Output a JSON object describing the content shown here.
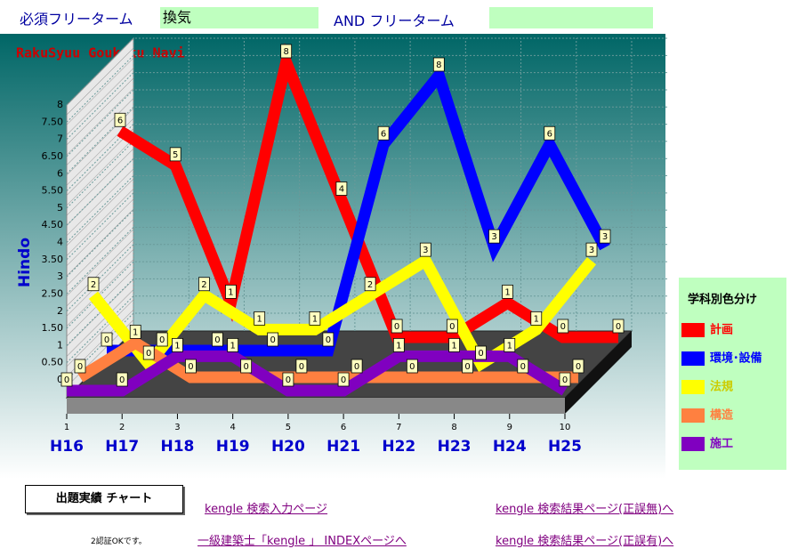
{
  "header": {
    "label1": "必須フリーターム",
    "input1": "換気",
    "label2": "AND フリーターム",
    "input2": ""
  },
  "chart_data": {
    "type": "ribbon3d",
    "title": "RakuSyuu Goukaku Navi",
    "y_label": "Hindo",
    "legend_title": "学科別色分け",
    "categories": [
      "H16",
      "H17",
      "H18",
      "H19",
      "H20",
      "H21",
      "H22",
      "H23",
      "H24",
      "H25"
    ],
    "x": [
      1,
      2,
      3,
      4,
      5,
      6,
      7,
      8,
      9,
      10
    ],
    "xticks": [
      1,
      2,
      3,
      4,
      5,
      6,
      7,
      8,
      9,
      10
    ],
    "ylim": [
      0,
      8
    ],
    "yticks": [
      0,
      {
        "value": 0.5,
        "label": "0.50"
      },
      1,
      {
        "value": 1.5,
        "label": "1.50"
      },
      2,
      {
        "value": 2.5,
        "label": "2.50"
      },
      3,
      {
        "value": 3.5,
        "label": "3.50"
      },
      4,
      {
        "value": 4.5,
        "label": "4.50"
      },
      5,
      {
        "value": 5.5,
        "label": "5.50"
      },
      6,
      {
        "value": 6.5,
        "label": "6.50"
      },
      7,
      {
        "value": 7.5,
        "label": "7.50"
      },
      8
    ],
    "grid": true,
    "series": [
      {
        "name": "計画",
        "color": "#ff0000",
        "values": [
          6,
          5,
          1,
          8,
          4,
          0,
          0,
          1,
          0,
          0
        ]
      },
      {
        "name": "環境･設備",
        "color": "#0000ff",
        "values": [
          0,
          0,
          0,
          0,
          0,
          6,
          8,
          3,
          6,
          3
        ]
      },
      {
        "name": "法規",
        "color": "#ffff00",
        "values": [
          2,
          0,
          2,
          1,
          1,
          2,
          3,
          0,
          1,
          3
        ]
      },
      {
        "name": "構造",
        "color": "#ff8040",
        "values": [
          0,
          1,
          0,
          0,
          0,
          0,
          0,
          0,
          0,
          0
        ]
      },
      {
        "name": "施工",
        "color": "#8000c0",
        "values": [
          0,
          0,
          1,
          1,
          0,
          0,
          1,
          1,
          1,
          0
        ]
      }
    ]
  },
  "footer": {
    "button": "出題実績 チャート",
    "link1": "kengle 検索入力ページ",
    "link2": "kengle 検索結果ページ(正誤無)へ",
    "note": "2認証OKです。",
    "link3": "一級建築士「kengle 」 INDEXページへ",
    "link4": "kengle 検索結果ページ(正誤有)へ"
  }
}
